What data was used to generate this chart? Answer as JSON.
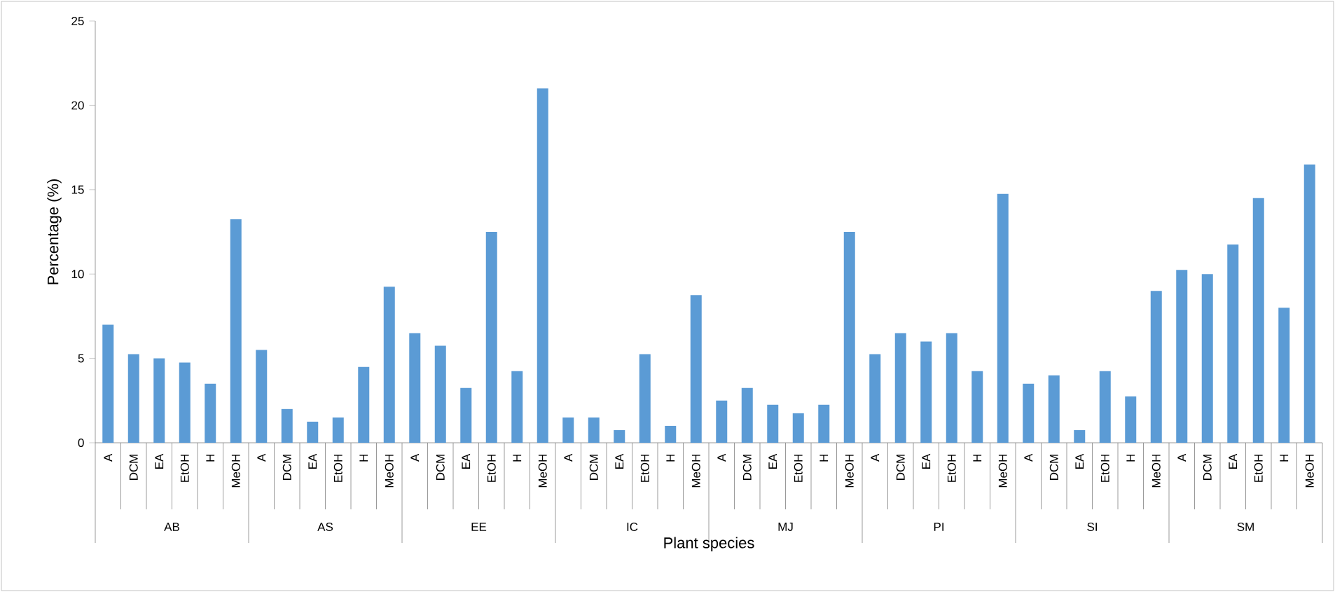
{
  "chart_data": {
    "type": "bar",
    "xlabel": "Plant species",
    "ylabel": "Percentage (%)",
    "color": "#5b9bd5",
    "categories": [
      "A",
      "DCM",
      "EA",
      "EtOH",
      "H",
      "MeOH",
      "A",
      "DCM",
      "EA",
      "EtOH",
      "H",
      "MeOH",
      "A",
      "DCM",
      "EA",
      "EtOH",
      "H",
      "MeOH",
      "A",
      "DCM",
      "EA",
      "EtOH",
      "H",
      "MeOH",
      "A",
      "DCM",
      "EA",
      "EtOH",
      "H",
      "MeOH",
      "A",
      "DCM",
      "EA",
      "EtOH",
      "H",
      "MeOH",
      "A",
      "DCM",
      "EA",
      "EtOH",
      "H",
      "MeOH",
      "A",
      "DCM",
      "EA",
      "EtOH",
      "H",
      "MeOH"
    ],
    "values": [
      7,
      5.25,
      5,
      4.75,
      3.5,
      13.25,
      5.5,
      2,
      1.25,
      1.5,
      4.5,
      9.25,
      6.5,
      5.75,
      3.25,
      12.5,
      4.25,
      21,
      1.5,
      1.5,
      0.75,
      5.25,
      1,
      8.75,
      2.5,
      3.25,
      2.25,
      1.75,
      2.25,
      12.5,
      5.25,
      6.5,
      6,
      6.5,
      4.25,
      14.75,
      3.5,
      4,
      0.75,
      4.25,
      2.75,
      9,
      10.25,
      10,
      11.75,
      14.5,
      8,
      16.5
    ],
    "annotations": [
      "AB",
      "AS",
      "EE",
      "IC",
      "MJ",
      "PI",
      "SI",
      "SM"
    ],
    "ylim": [
      0,
      25
    ],
    "yticks": [
      0,
      5,
      10,
      15,
      20,
      25
    ],
    "grid": false
  }
}
